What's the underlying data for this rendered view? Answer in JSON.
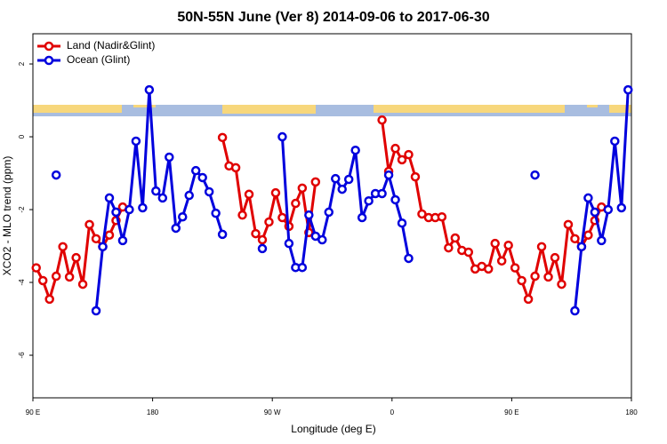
{
  "chart_data": {
    "type": "line",
    "title": "50N-55N June (Ver 8)   2014-09-06 to 2017-06-30",
    "xlabel": "Longitude (deg E)",
    "ylabel": "XCO2 - MLO trend (ppm)",
    "x": [
      92.5,
      97.5,
      102.5,
      107.5,
      112.5,
      117.5,
      122.5,
      127.5,
      132.5,
      137.5,
      142.5,
      147.5,
      152.5,
      157.5,
      162.5,
      167.5,
      172.5,
      177.5,
      182.5,
      187.5,
      192.5,
      197.5,
      202.5,
      207.5,
      212.5,
      217.5,
      222.5,
      227.5,
      232.5,
      237.5,
      242.5,
      247.5,
      252.5,
      257.5,
      262.5,
      267.5,
      272.5,
      277.5,
      282.5,
      287.5,
      292.5,
      297.5,
      302.5,
      307.5,
      312.5,
      317.5,
      322.5,
      327.5,
      332.5,
      337.5,
      342.5,
      347.5,
      352.5,
      357.5,
      362.5,
      367.5,
      372.5,
      377.5,
      382.5,
      387.5,
      392.5,
      397.5,
      402.5,
      407.5,
      412.5,
      417.5,
      422.5,
      427.5,
      432.5,
      437.5,
      442.5,
      447.5,
      452.5,
      457.5,
      462.5,
      467.5,
      472.5,
      477.5,
      482.5,
      487.5,
      492.5,
      497.5,
      502.5,
      507.5,
      512.5,
      517.5,
      522.5,
      527.5,
      532.5,
      537.5
    ],
    "series": [
      {
        "name": "Land (Nadir&Glint)",
        "color": "#e00000",
        "values": [
          -3.6,
          -3.95,
          -4.46,
          -3.83,
          -3.02,
          -3.85,
          -3.32,
          -4.05,
          -2.41,
          -2.8,
          -3.02,
          -2.7,
          -2.3,
          -1.93,
          null,
          null,
          null,
          null,
          null,
          null,
          null,
          null,
          null,
          null,
          null,
          null,
          null,
          null,
          -0.02,
          -0.8,
          -0.85,
          -2.15,
          -1.58,
          -2.66,
          -2.83,
          -2.34,
          -1.54,
          -2.22,
          -2.46,
          -1.83,
          -1.41,
          -2.63,
          -1.24,
          null,
          null,
          null,
          null,
          null,
          null,
          null,
          null,
          null,
          0.46,
          -0.95,
          -0.32,
          -0.63,
          -0.49,
          -1.1,
          -2.12,
          -2.22,
          -2.22,
          -2.2,
          -3.05,
          -2.78,
          -3.12,
          -3.17,
          -3.63,
          -3.56,
          -3.63,
          -2.93,
          -3.41,
          -2.98,
          -3.6,
          -3.95,
          -4.46,
          -3.83,
          -3.02,
          -3.85,
          -3.32,
          -4.05,
          -2.41,
          -2.8,
          -3.02,
          -2.7,
          -2.3,
          -1.93,
          null,
          null,
          null,
          null
        ]
      },
      {
        "name": "Ocean (Glint)",
        "color": "#0000dd",
        "values": [
          null,
          null,
          null,
          -1.05,
          null,
          null,
          null,
          null,
          null,
          -4.78,
          -3.02,
          -1.68,
          -2.07,
          -2.85,
          -2.0,
          -0.12,
          -1.95,
          1.29,
          -1.49,
          -1.68,
          -0.56,
          -2.51,
          -2.2,
          -1.61,
          -0.93,
          -1.12,
          -1.51,
          -2.1,
          -2.68,
          null,
          null,
          null,
          null,
          null,
          -3.07,
          null,
          null,
          0.0,
          -2.93,
          -3.59,
          -3.59,
          -2.15,
          -2.73,
          -2.83,
          -2.07,
          -1.15,
          -1.44,
          -1.17,
          -0.37,
          -2.22,
          -1.76,
          -1.56,
          -1.56,
          -1.05,
          -1.73,
          -2.37,
          -3.34,
          null,
          null,
          null,
          null,
          null,
          null,
          null,
          null,
          null,
          null,
          null,
          null,
          null,
          null,
          null,
          null,
          null,
          null,
          -1.05,
          null,
          null,
          null,
          null,
          null,
          -4.78,
          -3.02,
          -1.68,
          -2.07,
          -2.85,
          -2.0,
          -0.12,
          -1.95,
          1.29
        ]
      }
    ],
    "xlim": [
      90,
      540
    ],
    "xticks": [
      {
        "value": 90,
        "label": "90 E"
      },
      180,
      {
        "value": 270,
        "label": "90 W"
      },
      {
        "value": 360,
        "label": "0"
      },
      {
        "value": 450,
        "label": "90 E"
      },
      {
        "value": 540,
        "label": "180"
      }
    ],
    "ylim": [
      -7.17,
      2.83
    ],
    "yticks": [
      2,
      0,
      -2,
      -4,
      -6
    ],
    "legend": "upper left"
  }
}
